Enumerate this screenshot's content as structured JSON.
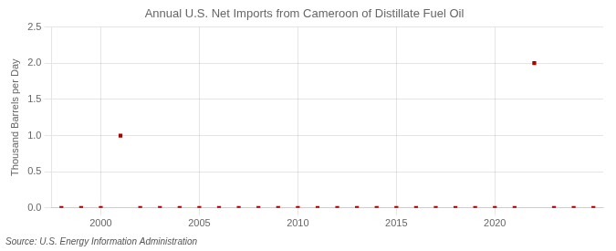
{
  "chart_data": {
    "type": "scatter",
    "title": "Annual U.S. Net Imports from Cameroon of Distillate Fuel Oil",
    "ylabel": "Thousand Barrels per Day",
    "annotations": [
      "Source: U.S. Energy Information Administration"
    ],
    "x": [
      1998,
      1999,
      2000,
      2001,
      2002,
      2003,
      2004,
      2005,
      2006,
      2007,
      2008,
      2009,
      2010,
      2011,
      2012,
      2013,
      2014,
      2015,
      2016,
      2017,
      2018,
      2019,
      2020,
      2021,
      2022,
      2023,
      2024,
      2025
    ],
    "values": [
      0,
      0,
      0,
      1,
      0,
      0,
      0,
      0,
      0,
      0,
      0,
      0,
      0,
      0,
      0,
      0,
      0,
      0,
      0,
      0,
      0,
      0,
      0,
      0,
      2,
      0,
      0,
      0
    ],
    "color": "#aa0000",
    "marker": "square",
    "xlim": [
      1997.5,
      2025.5
    ],
    "xticks": [
      2000,
      2005,
      2010,
      2015,
      2020
    ],
    "ylim": [
      0,
      2.5
    ],
    "yticks": [
      {
        "value": 0,
        "label": "0.0"
      },
      0.5,
      {
        "value": 1,
        "label": "1.0"
      },
      1.5,
      {
        "value": 2,
        "label": "2.0"
      },
      2.5
    ],
    "grid": true
  }
}
